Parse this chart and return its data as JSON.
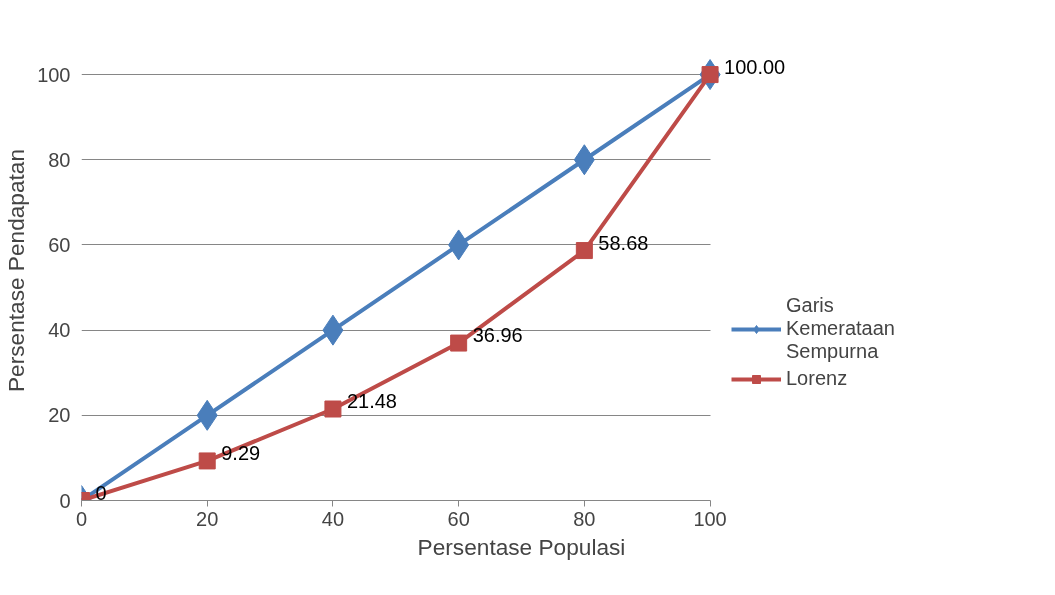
{
  "chart_data": {
    "type": "line",
    "xlabel": "Persentase Populasi",
    "ylabel": "Persentase Pendapatan",
    "x": [
      0,
      20,
      40,
      60,
      80,
      100
    ],
    "series": [
      {
        "name": "Garis Kemerataan Sempurna",
        "color": "#4a7ebb",
        "marker": "diamond",
        "values": [
          0,
          20,
          40,
          60,
          80,
          100
        ]
      },
      {
        "name": "Lorenz",
        "color": "#be4b48",
        "marker": "square",
        "values": [
          0,
          9.29,
          21.48,
          36.96,
          58.68,
          100
        ],
        "value_labels": [
          "0",
          "9.29",
          "21.48",
          "36.96",
          "58.68",
          "100.00"
        ]
      }
    ],
    "xlim": [
      0,
      100
    ],
    "xticks": [
      0,
      20,
      40,
      60,
      80,
      100
    ],
    "ylim": [
      0,
      100
    ],
    "yticks": [
      0,
      20,
      40,
      60,
      80,
      100
    ],
    "grid": "y",
    "legend": "right",
    "line_style": "solid"
  }
}
